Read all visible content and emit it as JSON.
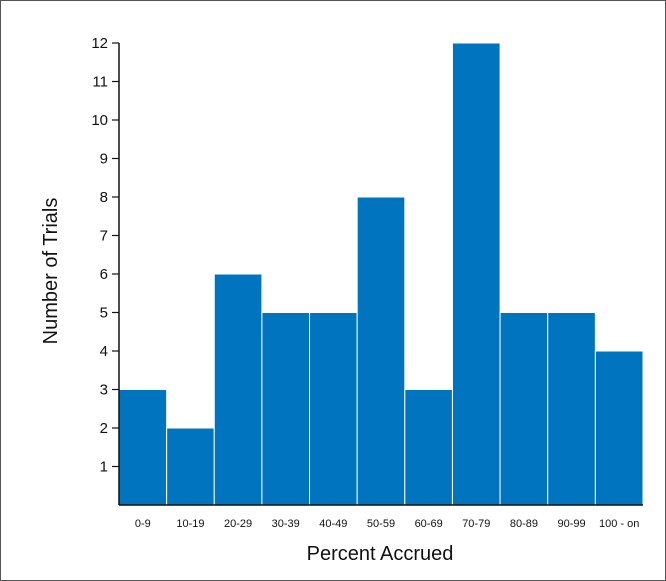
{
  "chart_data": {
    "type": "bar",
    "title": "",
    "xlabel": "Percent Accrued",
    "ylabel": "Number of Trials",
    "categories": [
      "0-9",
      "10-19",
      "20-29",
      "30-39",
      "40-49",
      "50-59",
      "60-69",
      "70-79",
      "80-89",
      "90-99",
      "100 - on"
    ],
    "values": [
      3,
      2,
      6,
      5,
      5,
      8,
      3,
      12,
      5,
      5,
      4
    ],
    "ylim": [
      0,
      12
    ],
    "yticks": [
      "1",
      "2",
      "3",
      "4",
      "5",
      "6",
      "7",
      "8",
      "9",
      "10",
      "11",
      "12"
    ],
    "grid": false,
    "legend": "none",
    "bar_color": "#0074bf"
  }
}
